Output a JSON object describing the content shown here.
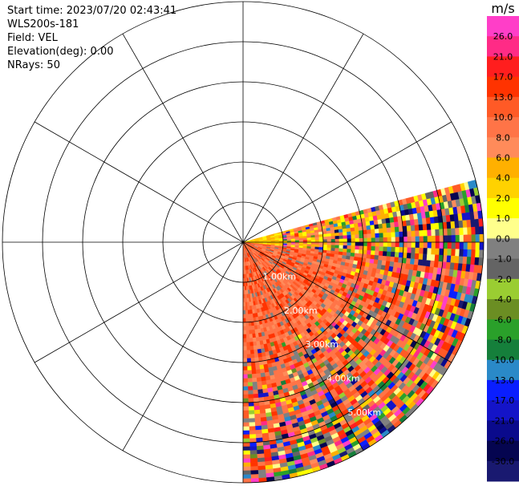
{
  "info": {
    "start_time": "Start time: 2023/07/20 02:43:41",
    "instrument": "WLS200s-181",
    "field": "Field: VEL",
    "elevation": "Elevation(deg): 0.00",
    "nrays": "NRays: 50"
  },
  "chart_data": {
    "type": "ppi-polar",
    "field": "VEL",
    "units": "m/s",
    "range_rings_km": [
      1,
      2,
      3,
      4,
      5,
      6
    ],
    "range_labels": [
      "1.00km",
      "2.00km",
      "3.00km",
      "4.00km",
      "5.00km"
    ],
    "spoke_interval_deg": 30,
    "sector_azimuth_deg": [
      75,
      180
    ],
    "nrays": 50,
    "max_range_km": 6.0,
    "colorbar": {
      "title": "m/s",
      "ticks": [
        "26.0",
        "21.0",
        "17.0",
        "13.0",
        "10.0",
        "8.0",
        "6.0",
        "4.0",
        "2.0",
        "1.0",
        "0.0",
        "-1.0",
        "-2.0",
        "-4.0",
        "-6.0",
        "-8.0",
        "-10.0",
        "-13.0",
        "-17.0",
        "-21.0",
        "-26.0",
        "-30.0"
      ],
      "colors": [
        "#ff3ec8",
        "#ff2b86",
        "#ff1e1e",
        "#ff3300",
        "#ff5a26",
        "#ff7447",
        "#ff8b5a",
        "#ffb000",
        "#ffd200",
        "#ffff00",
        "#ffff8c",
        "#808080",
        "#646464",
        "#9acd32",
        "#6b8e23",
        "#2aa02a",
        "#157f3b",
        "#2a89c8",
        "#0a1eff",
        "#1414c8",
        "#0a0a8c",
        "#050550",
        "#191970"
      ]
    }
  }
}
